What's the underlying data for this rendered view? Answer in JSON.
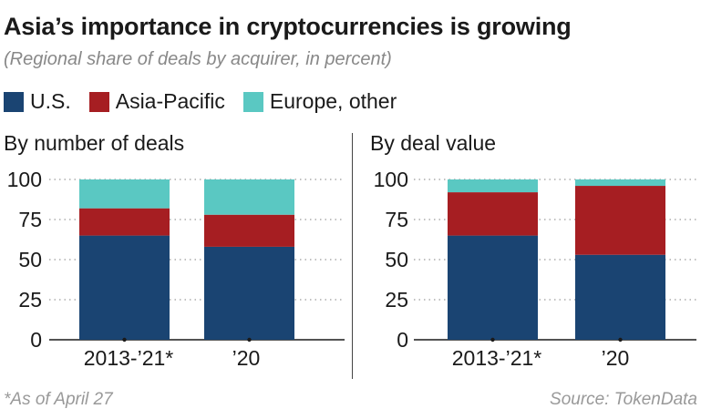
{
  "title": "Asia’s importance in cryptocurrencies is growing",
  "subtitle": "(Regional share of deals by acquirer, in percent)",
  "legend": [
    {
      "label": "U.S.",
      "color": "#1a4472"
    },
    {
      "label": "Asia-Pacific",
      "color": "#a61e22"
    },
    {
      "label": "Europe, other",
      "color": "#5ac8c2"
    }
  ],
  "chart_data": [
    {
      "type": "bar",
      "stacked": true,
      "title": "By number of deals",
      "categories": [
        "2013-’21*",
        "’20"
      ],
      "series": [
        {
          "name": "U.S.",
          "values": [
            65,
            58
          ]
        },
        {
          "name": "Asia-Pacific",
          "values": [
            17,
            20
          ]
        },
        {
          "name": "Europe, other",
          "values": [
            18,
            22
          ]
        }
      ],
      "ylim": [
        0,
        100
      ],
      "yticks": [
        "0",
        "25",
        "50",
        "75",
        "100"
      ],
      "grid": true
    },
    {
      "type": "bar",
      "stacked": true,
      "title": "By deal value",
      "categories": [
        "2013-’21*",
        "’20"
      ],
      "series": [
        {
          "name": "U.S.",
          "values": [
            65,
            53
          ]
        },
        {
          "name": "Asia-Pacific",
          "values": [
            27,
            43
          ]
        },
        {
          "name": "Europe, other",
          "values": [
            8,
            4
          ]
        }
      ],
      "ylim": [
        0,
        100
      ],
      "yticks": [
        "0",
        "25",
        "50",
        "75",
        "100"
      ],
      "grid": true
    }
  ],
  "footnote": "*As of April 27",
  "source": "Source: TokenData"
}
